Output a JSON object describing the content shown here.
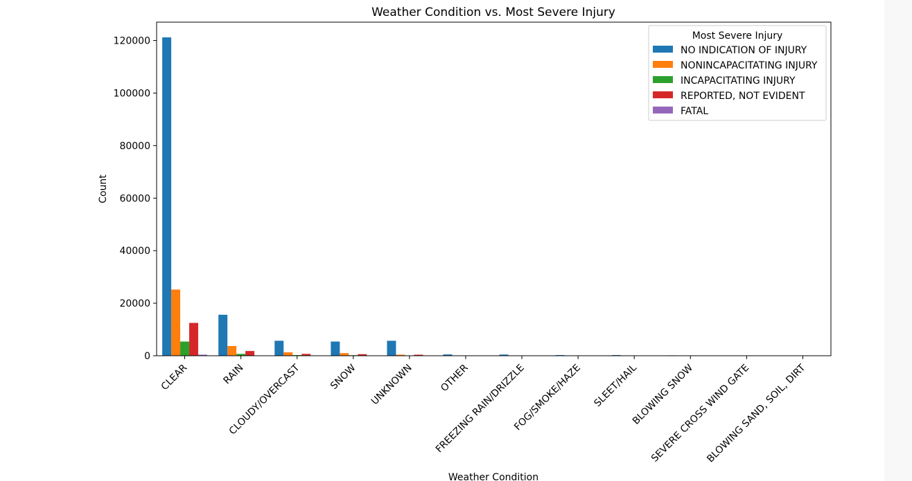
{
  "chart_data": {
    "type": "bar",
    "title": "Weather Condition vs. Most Severe Injury",
    "xlabel": "Weather Condition",
    "ylabel": "Count",
    "ylim": [
      0,
      127000
    ],
    "yticks": [
      0,
      20000,
      40000,
      60000,
      80000,
      100000,
      120000
    ],
    "grid": false,
    "categories": [
      "CLEAR",
      "RAIN",
      "CLOUDY/OVERCAST",
      "SNOW",
      "UNKNOWN",
      "OTHER",
      "FREEZING RAIN/DRIZZLE",
      "FOG/SMOKE/HAZE",
      "SLEET/HAIL",
      "BLOWING SNOW",
      "SEVERE CROSS WIND GATE",
      "BLOWING SAND, SOIL, DIRT"
    ],
    "legend": {
      "title": "Most Severe Injury",
      "placement": "top-right"
    },
    "series": [
      {
        "name": "NO INDICATION OF INJURY",
        "color": "#1f77b4",
        "values": [
          121200,
          15600,
          5700,
          5400,
          5700,
          500,
          450,
          250,
          250,
          150,
          100,
          60
        ]
      },
      {
        "name": "NONINCAPACITATING INJURY",
        "color": "#ff7f0e",
        "values": [
          25200,
          3700,
          1300,
          1000,
          400,
          120,
          120,
          70,
          50,
          40,
          20,
          10
        ]
      },
      {
        "name": "INCAPACITATING INJURY",
        "color": "#2ca02c",
        "values": [
          5400,
          700,
          250,
          200,
          80,
          30,
          30,
          20,
          15,
          10,
          5,
          3
        ]
      },
      {
        "name": "REPORTED, NOT EVIDENT",
        "color": "#d62728",
        "values": [
          12500,
          1800,
          700,
          600,
          400,
          60,
          70,
          40,
          30,
          20,
          10,
          5
        ]
      },
      {
        "name": "FATAL",
        "color": "#9467bd",
        "values": [
          400,
          80,
          30,
          30,
          10,
          5,
          5,
          3,
          2,
          1,
          1,
          1
        ]
      }
    ]
  }
}
